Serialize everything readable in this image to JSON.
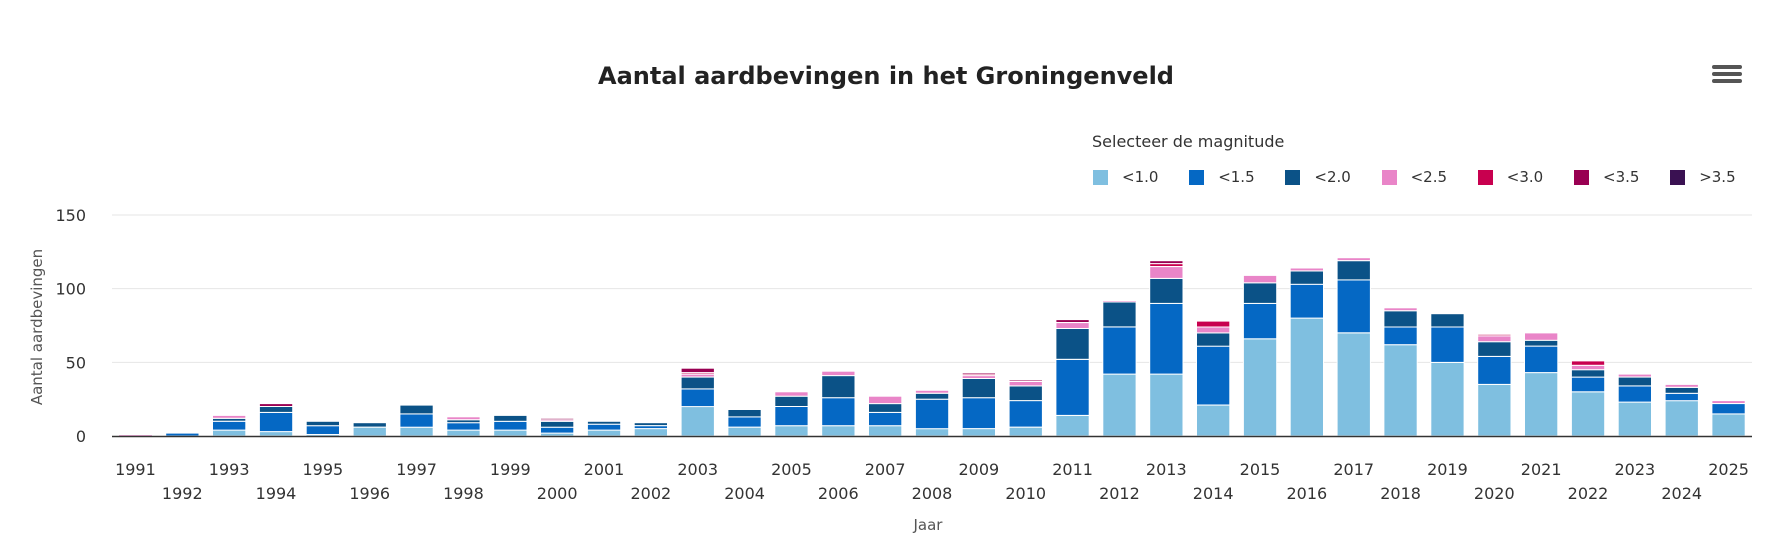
{
  "title": "Aantal aardbevingen in het Groningenveld",
  "menu": {
    "icon": "hamburger-menu-icon"
  },
  "legend": {
    "title": "Selecteer de magnitude"
  },
  "chart_data": {
    "type": "bar",
    "stacked": true,
    "title": "Aantal aardbevingen in het Groningenveld",
    "xlabel": "Jaar",
    "ylabel": "Aantal aardbevingen",
    "ylim": [
      0,
      150
    ],
    "yticks": [
      0,
      50,
      100,
      150
    ],
    "grid": true,
    "legend_title": "Selecteer de magnitude",
    "legend_position": "top-right",
    "categories": [
      "1991",
      "1992",
      "1993",
      "1994",
      "1995",
      "1996",
      "1997",
      "1998",
      "1999",
      "2000",
      "2001",
      "2002",
      "2003",
      "2004",
      "2005",
      "2006",
      "2007",
      "2008",
      "2009",
      "2010",
      "2011",
      "2012",
      "2013",
      "2014",
      "2015",
      "2016",
      "2017",
      "2018",
      "2019",
      "2020",
      "2021",
      "2022",
      "2023",
      "2024",
      "2025"
    ],
    "series": [
      {
        "name": "<1.0",
        "color": "#7fbfe0",
        "values": [
          0,
          0,
          4,
          3,
          1,
          6,
          6,
          4,
          4,
          2,
          4,
          5,
          20,
          6,
          7,
          7,
          7,
          5,
          5,
          6,
          14,
          42,
          42,
          21,
          66,
          80,
          70,
          62,
          50,
          35,
          43,
          30,
          23,
          24,
          15
        ]
      },
      {
        "name": "<1.5",
        "color": "#0568c4",
        "values": [
          0,
          2,
          6,
          13,
          6,
          0,
          9,
          5,
          6,
          4,
          4,
          2,
          12,
          7,
          13,
          19,
          9,
          20,
          21,
          18,
          38,
          32,
          48,
          40,
          24,
          23,
          36,
          12,
          24,
          19,
          18,
          10,
          11,
          5,
          7
        ]
      },
      {
        "name": "<2.0",
        "color": "#0b5287",
        "values": [
          0,
          0,
          2,
          4,
          3,
          3,
          6,
          2,
          4,
          4,
          2,
          2,
          8,
          5,
          7,
          15,
          6,
          4,
          13,
          10,
          21,
          17,
          17,
          9,
          14,
          9,
          13,
          11,
          9,
          10,
          4,
          5,
          6,
          4,
          0
        ]
      },
      {
        "name": "<2.5",
        "color": "#e985c8",
        "values": [
          1,
          0,
          2,
          0,
          0,
          0,
          0,
          2,
          0,
          1,
          0,
          0,
          2,
          0,
          3,
          3,
          5,
          2,
          2,
          3,
          4,
          1,
          8,
          4,
          5,
          2,
          2,
          2,
          0,
          4,
          5,
          3,
          2,
          2,
          2
        ]
      },
      {
        "name": "<3.0",
        "color": "#c8004f",
        "values": [
          0,
          0,
          0,
          0,
          0,
          0,
          0,
          0,
          0,
          0,
          0,
          0,
          1,
          0,
          0,
          0,
          0,
          0,
          1,
          0,
          0,
          0,
          2,
          4,
          0,
          0,
          0,
          0,
          0,
          1,
          0,
          3,
          0,
          0,
          0
        ]
      },
      {
        "name": "<3.5",
        "color": "#990052",
        "values": [
          0,
          0,
          0,
          2,
          0,
          0,
          0,
          0,
          0,
          1,
          0,
          0,
          3,
          0,
          0,
          0,
          0,
          0,
          1,
          1,
          2,
          0,
          2,
          0,
          0,
          0,
          0,
          0,
          0,
          0,
          0,
          0,
          0,
          0,
          0
        ]
      },
      {
        "name": ">3.5",
        "color": "#3a1152",
        "values": [
          0,
          0,
          0,
          0,
          0,
          0,
          0,
          0,
          0,
          0,
          0,
          0,
          0,
          0,
          0,
          0,
          0,
          0,
          0,
          0,
          0,
          0,
          0,
          0,
          0,
          0,
          0,
          0,
          0,
          0,
          0,
          0,
          0,
          0,
          0
        ]
      }
    ]
  }
}
